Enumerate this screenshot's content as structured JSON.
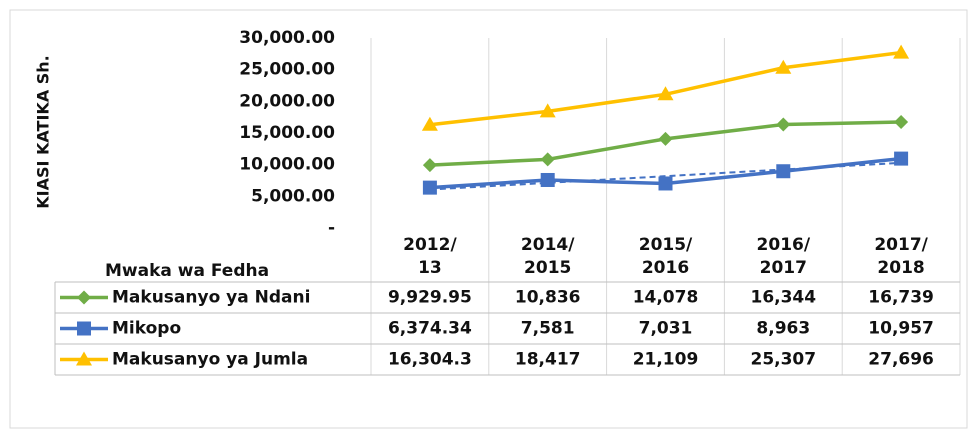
{
  "chart_data": {
    "type": "line",
    "y_axis_label": "KIASI KATIKA Sh.",
    "x_axis_label": "Mwaka wa Fedha",
    "categories": [
      "2012/13",
      "2014/2015",
      "2015/2016",
      "2016/2017",
      "2017/2018"
    ],
    "series": [
      {
        "name": "Makusanyo ya Ndani",
        "color": "#70ad47",
        "marker": "diamond",
        "values": [
          9929.95,
          10836,
          14078,
          16344,
          16739
        ],
        "value_labels": [
          "9,929.95",
          "10,836",
          "14,078",
          "16,344",
          "16,739"
        ]
      },
      {
        "name": "Mikopo",
        "color": "#4472c4",
        "marker": "square",
        "trendline": true,
        "values": [
          6374.34,
          7581,
          7031,
          8963,
          10957
        ],
        "value_labels": [
          "6,374.34",
          "7,581",
          "7,031",
          "8,963",
          "10,957"
        ]
      },
      {
        "name": "Makusanyo ya Jumla",
        "color": "#ffc000",
        "marker": "triangle",
        "values": [
          16304.3,
          18417,
          21109,
          25307,
          27696
        ],
        "value_labels": [
          "16,304.3",
          "18,417",
          "21,109",
          "25,307",
          "27,696"
        ]
      }
    ],
    "ylim": [
      0,
      30000
    ],
    "yticks": [
      {
        "value": 0,
        "label": "-"
      },
      {
        "value": 5000,
        "label": "5,000.00"
      },
      {
        "value": 10000,
        "label": "10,000.00"
      },
      {
        "value": 15000,
        "label": "15,000.00"
      },
      {
        "value": 20000,
        "label": "20,000.00"
      },
      {
        "value": 25000,
        "label": "25,000.00"
      },
      {
        "value": 30000,
        "label": "30,000.00"
      }
    ],
    "grid": true
  }
}
